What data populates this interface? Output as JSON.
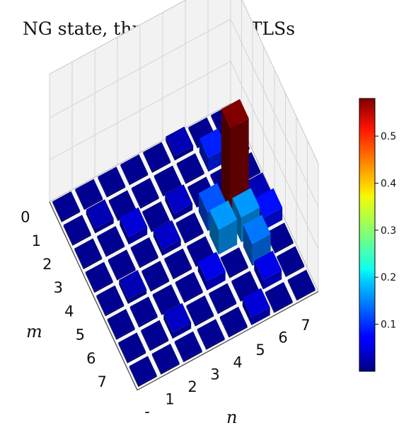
{
  "title": "NG state, three ancillary TLSs",
  "chart_data": {
    "type": "bar3d",
    "title": "NG state, three ancillary TLSs",
    "xlabel": "n",
    "ylabel": "m",
    "x_ticks": [
      "-",
      "1",
      "2",
      "3",
      "4",
      "5",
      "6",
      "7"
    ],
    "y_ticks": [
      "0",
      "1",
      "2",
      "3",
      "4",
      "5",
      "6",
      "7"
    ],
    "colormap": "jet",
    "colorbar": {
      "min": 0.0,
      "max": 0.58,
      "ticks": [
        "0.1",
        "0.2",
        "0.3",
        "0.4",
        "0.5"
      ]
    },
    "values": [
      [
        0.01,
        0.01,
        0.01,
        0.01,
        0.01,
        0.03,
        0.01,
        0.01
      ],
      [
        0.01,
        0.03,
        0.01,
        0.01,
        0.01,
        0.01,
        0.09,
        0.01
      ],
      [
        0.01,
        0.01,
        0.05,
        0.01,
        0.04,
        0.01,
        0.01,
        0.01
      ],
      [
        0.01,
        0.01,
        0.01,
        0.04,
        0.01,
        0.12,
        0.58,
        0.03
      ],
      [
        0.01,
        0.03,
        0.01,
        0.01,
        0.01,
        0.16,
        0.16,
        0.08
      ],
      [
        0.01,
        0.01,
        0.01,
        0.01,
        0.06,
        0.01,
        0.14,
        0.01
      ],
      [
        0.01,
        0.01,
        0.04,
        0.01,
        0.01,
        0.01,
        0.06,
        0.01
      ],
      [
        0.01,
        0.01,
        0.01,
        0.01,
        0.01,
        0.05,
        0.01,
        0.01
      ]
    ]
  }
}
